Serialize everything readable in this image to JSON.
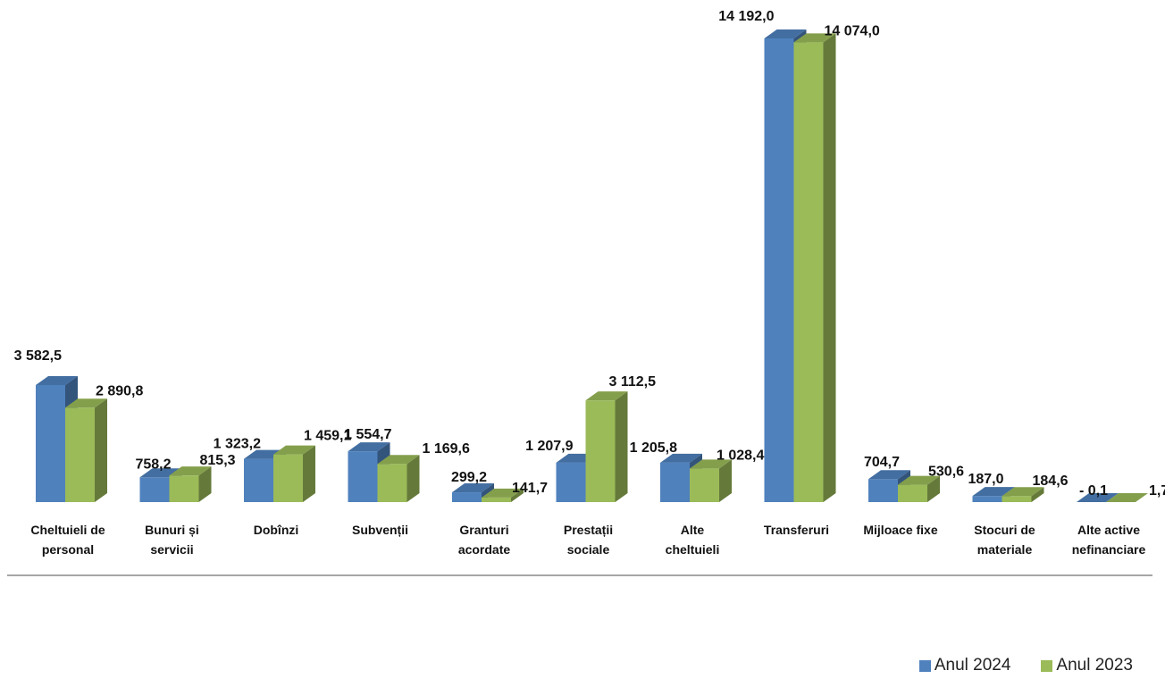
{
  "chart_data": {
    "type": "bar",
    "categories": [
      [
        "Cheltuieli de",
        "personal"
      ],
      [
        "Bunuri și",
        "servicii"
      ],
      [
        "Dobînzi"
      ],
      [
        "Subvenții"
      ],
      [
        "Granturi",
        "acordate"
      ],
      [
        "Prestații",
        "sociale"
      ],
      [
        "Alte",
        "cheltuieli"
      ],
      [
        "Transferuri"
      ],
      [
        "Mijloace fixe"
      ],
      [
        "Stocuri de",
        "materiale"
      ],
      [
        "Alte active",
        "nefinanciare"
      ]
    ],
    "series": [
      {
        "name": "Anul 2024",
        "color": "#4f81bd",
        "values": [
          3582.5,
          758.2,
          1323.2,
          1554.7,
          299.2,
          1207.9,
          1205.8,
          14192.0,
          704.7,
          187.0,
          -0.1
        ],
        "labels": [
          "3 582,5",
          "758,2",
          "1 323,2",
          "1 554,7",
          "299,2",
          "1 207,9",
          "1 205,8",
          "14 192,0",
          "704,7",
          "187,0",
          "- 0,1"
        ]
      },
      {
        "name": "Anul 2023",
        "color": "#9bbb59",
        "values": [
          2890.8,
          815.3,
          1459.1,
          1169.6,
          141.7,
          3112.5,
          1028.4,
          14074.0,
          530.6,
          184.6,
          1.7
        ],
        "labels": [
          "2 890,8",
          "815,3",
          "1 459,1",
          "1 169,6",
          "141,7",
          "3 112,5",
          "1 028,4",
          "14 074,0",
          "530,6",
          "184,6",
          "1,7"
        ]
      }
    ],
    "ylim": [
      0,
      14192
    ],
    "grid": false,
    "legend_position": "bottom-right",
    "style": "3d-column"
  }
}
